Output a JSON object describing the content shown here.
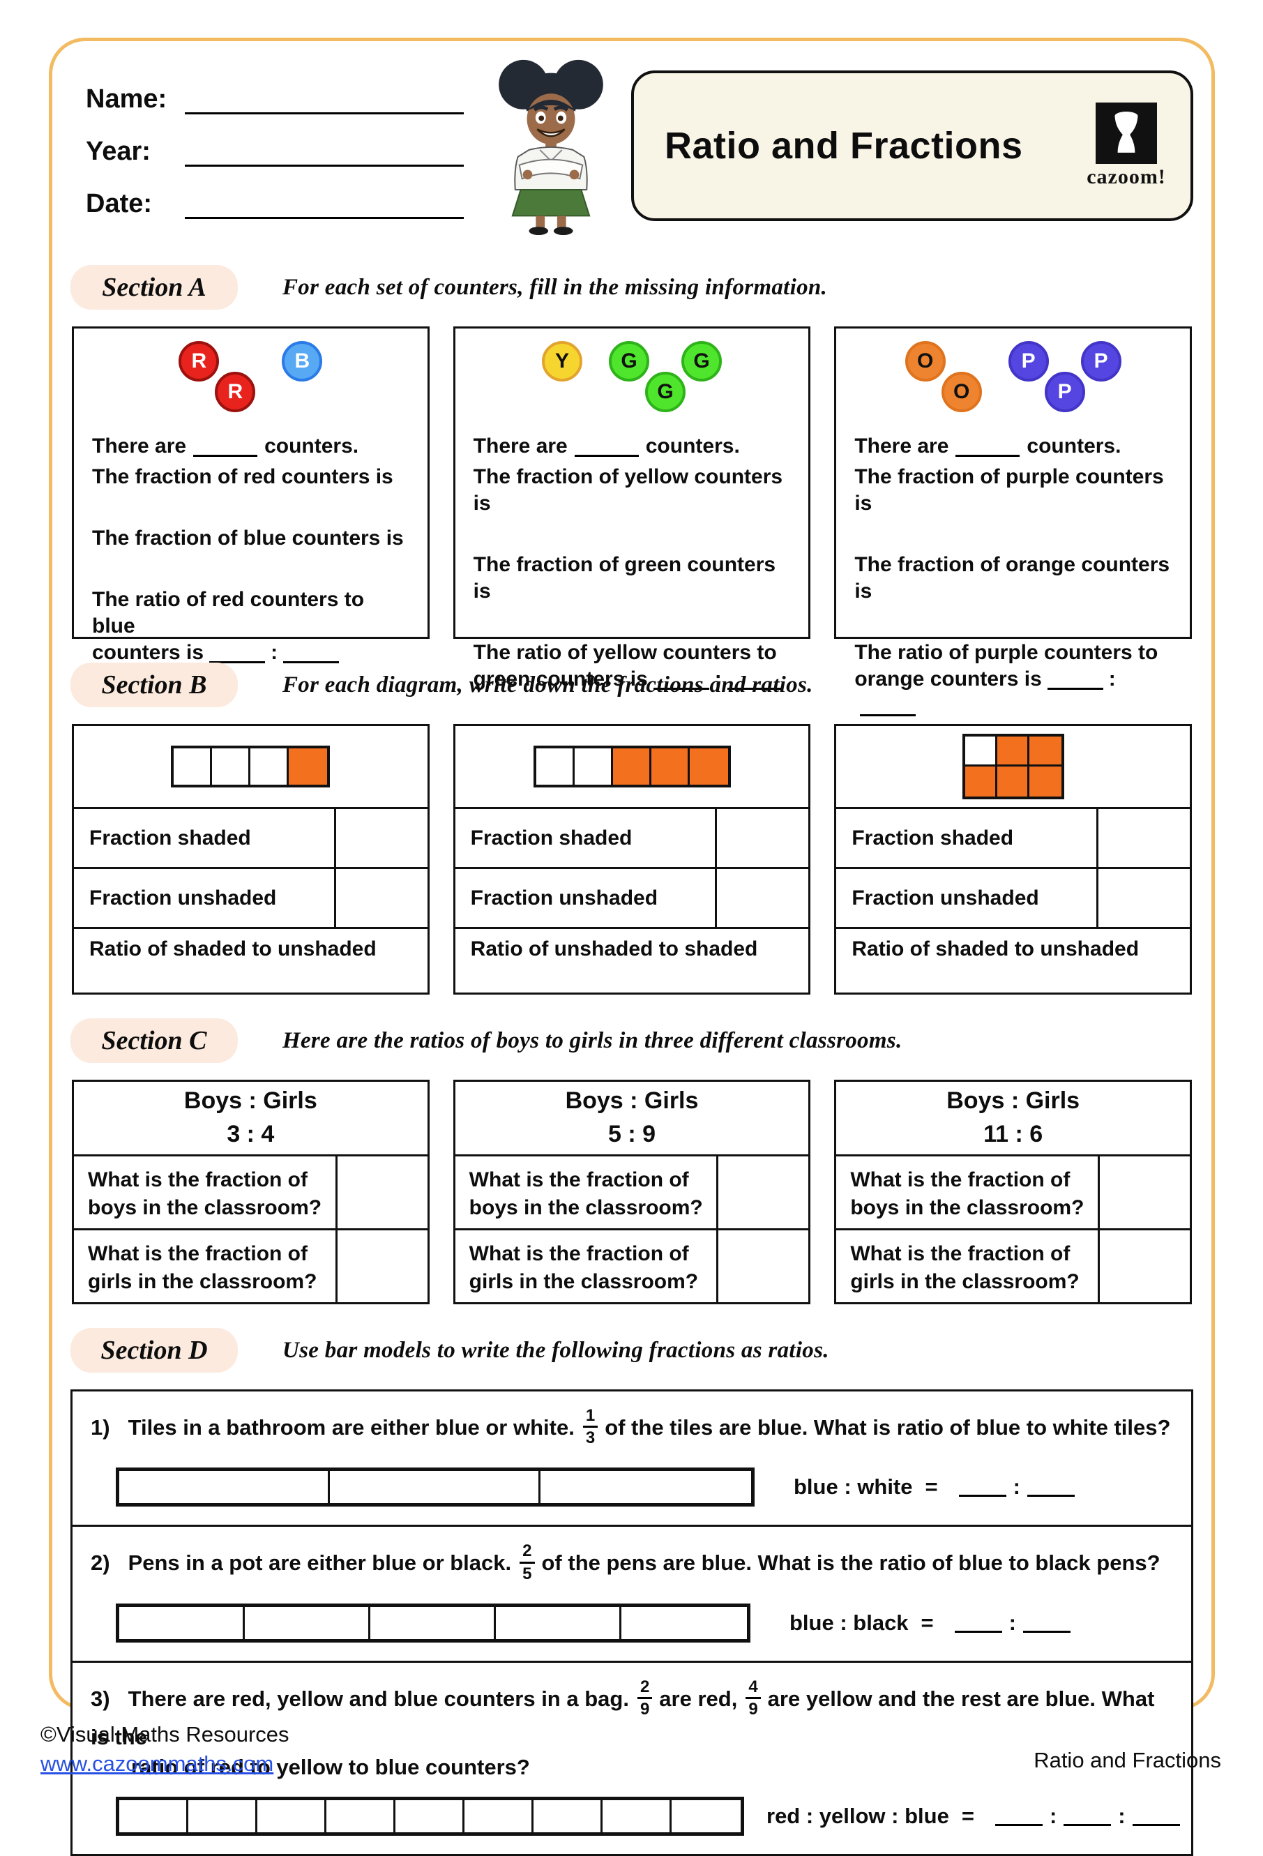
{
  "header": {
    "name_label": "Name:",
    "year_label": "Year:",
    "date_label": "Date:",
    "title": "Ratio and Fractions",
    "logo_text": "cazoom!"
  },
  "sections": {
    "a": {
      "label": "Section A",
      "instruction": "For each set of counters, fill in the missing information.",
      "counter_colors": {
        "R": {
          "fill": "#e8221c",
          "border": "#9b120e",
          "letter": "#ffffff"
        },
        "B": {
          "fill": "#57a9f4",
          "border": "#2a7ae8",
          "letter": "#ffffff"
        },
        "Y": {
          "fill": "#f6d62e",
          "border": "#e2a42e",
          "letter": "#111111"
        },
        "G": {
          "fill": "#50e52d",
          "border": "#2fb31b",
          "letter": "#111111"
        },
        "O": {
          "fill": "#ef8430",
          "border": "#e0731d",
          "letter": "#111111"
        },
        "P": {
          "fill": "#5546e1",
          "border": "#4235c8",
          "letter": "#ffffff"
        }
      },
      "boxes": [
        {
          "counters": [
            {
              "letter": "R"
            },
            {
              "letter": "R",
              "low": true
            },
            {
              "letter": "B",
              "gap": true
            }
          ],
          "count_pre": "There are",
          "count_post": "counters.",
          "fraction1": "The fraction of red counters is",
          "fraction2": "The fraction of blue counters is",
          "ratio_line1": "The ratio of red counters to blue",
          "ratio_line2": "counters is",
          "ratio_colon": ":"
        },
        {
          "counters": [
            {
              "letter": "Y"
            },
            {
              "letter": "G",
              "gap": true
            },
            {
              "letter": "G",
              "low": true
            },
            {
              "letter": "G"
            }
          ],
          "count_pre": "There are",
          "count_post": "counters.",
          "fraction1": "The fraction of yellow counters is",
          "fraction2": "The fraction of green counters is",
          "ratio_line1": "The ratio of yellow counters to",
          "ratio_line2": "green counters is",
          "ratio_colon": ":"
        },
        {
          "counters": [
            {
              "letter": "O"
            },
            {
              "letter": "O",
              "low": true
            },
            {
              "letter": "P",
              "gap": true
            },
            {
              "letter": "P",
              "low": true
            },
            {
              "letter": "P"
            }
          ],
          "count_pre": "There are",
          "count_post": "counters.",
          "fraction1": "The fraction of purple counters is",
          "fraction2": "The fraction of orange counters is",
          "ratio_line1": "The ratio of purple counters to",
          "ratio_line2": "orange counters is",
          "ratio_colon": ":"
        }
      ]
    },
    "b": {
      "label": "Section B",
      "instruction": "For each diagram, write down the fractions and ratios.",
      "shaded_color": "#f3701f",
      "boxes": [
        {
          "cells": [
            "w",
            "w",
            "w",
            "s"
          ],
          "grid": false,
          "row1": "Fraction shaded",
          "row2": "Fraction unshaded",
          "ratio_row": "Ratio of shaded to unshaded"
        },
        {
          "cells": [
            "w",
            "w",
            "s",
            "s",
            "s"
          ],
          "grid": false,
          "row1": "Fraction shaded",
          "row2": "Fraction unshaded",
          "ratio_row": "Ratio of unshaded to shaded"
        },
        {
          "cells": [
            "w",
            "s",
            "s",
            "s",
            "s",
            "s"
          ],
          "grid": true,
          "columns": 3,
          "row1": "Fraction shaded",
          "row2": "Fraction unshaded",
          "ratio_row": "Ratio of shaded to unshaded"
        }
      ]
    },
    "c": {
      "label": "Section C",
      "instruction": "Here are the ratios of boys to girls in three different classrooms.",
      "boxes": [
        {
          "header_line1": "Boys : Girls",
          "ratio": "3 : 4",
          "q1_line1": "What is the fraction of",
          "q1_line2": "boys in the classroom?",
          "q2_line1": "What is the fraction of",
          "q2_line2": "girls in the classroom?"
        },
        {
          "header_line1": "Boys : Girls",
          "ratio": "5 : 9",
          "q1_line1": "What is the fraction of",
          "q1_line2": "boys in the classroom?",
          "q2_line1": "What is the fraction of",
          "q2_line2": "girls in the classroom?"
        },
        {
          "header_line1": "Boys : Girls",
          "ratio": "11 : 6",
          "q1_line1": "What is the fraction of",
          "q1_line2": "boys in the classroom?",
          "q2_line1": "What is the fraction of",
          "q2_line2": "girls in the classroom?"
        }
      ]
    },
    "d": {
      "label": "Section D",
      "instruction": "Use bar models to write the following fractions as ratios.",
      "questions": [
        {
          "number": "1)",
          "text_pre": "Tiles in a bathroom are either blue or white.",
          "frac1_num": "1",
          "frac1_den": "3",
          "text_post": "of the tiles are blue. What is ratio of blue to white tiles?",
          "bar_cells": 3,
          "answer_label": "blue : white",
          "equals": "=",
          "colon": ":"
        },
        {
          "number": "2)",
          "text_pre": "Pens in a pot are either blue or black.",
          "frac1_num": "2",
          "frac1_den": "5",
          "text_post": "of the pens are blue. What is the ratio of blue to black pens?",
          "bar_cells": 5,
          "answer_label": "blue : black",
          "equals": "=",
          "colon": ":"
        },
        {
          "number": "3)",
          "text_pre": "There are red, yellow and blue counters in a bag.",
          "frac1_num": "2",
          "frac1_den": "9",
          "text_mid": "are red,",
          "frac2_num": "4",
          "frac2_den": "9",
          "text_post": "are yellow and the rest are blue. What is the",
          "text_line2": "ratio of red to yellow to blue counters?",
          "bar_cells": 9,
          "answer_label": "red : yellow : blue",
          "equals": "=",
          "colon": ":"
        }
      ]
    }
  },
  "footer": {
    "copyright": "©Visual Maths Resources",
    "website": "www.cazoommaths.com",
    "worksheet_name": "Ratio and Fractions"
  }
}
